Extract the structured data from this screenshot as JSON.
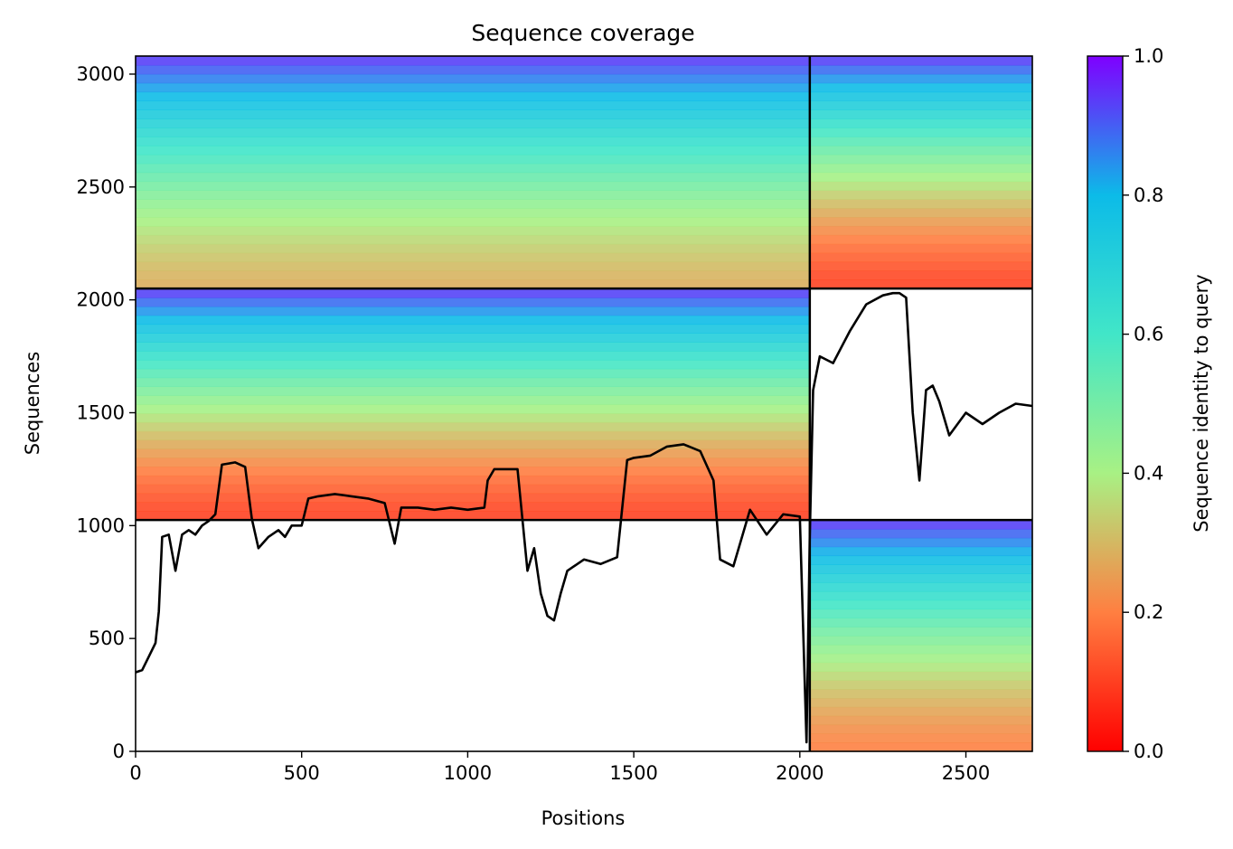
{
  "chart_data": {
    "type": "heatmap",
    "title": "Sequence coverage",
    "xlabel": "Positions",
    "ylabel": "Sequences",
    "xlim": [
      0,
      2700
    ],
    "ylim": [
      0,
      3080
    ],
    "xticks": [
      0,
      500,
      1000,
      1500,
      2000,
      2500
    ],
    "yticks": [
      0,
      500,
      1000,
      1500,
      2000,
      2500,
      3000
    ],
    "grid": false,
    "chain_boundaries_x": [
      2030
    ],
    "msa_group_boundaries_y": [
      1025,
      2050
    ],
    "colorbar": {
      "label": "Sequence identity to query",
      "colormap": "rainbow_r",
      "range": [
        0,
        1
      ],
      "ticks": [
        0.0,
        0.2,
        0.4,
        0.6,
        0.8,
        1.0
      ]
    },
    "blocks": [
      {
        "x0": 0,
        "x1": 2030,
        "y0": 2050,
        "y1": 3080,
        "identity_top": 0.95,
        "identity_bottom": 0.28
      },
      {
        "x0": 2030,
        "x1": 2700,
        "y0": 2050,
        "y1": 3080,
        "identity_top": 0.95,
        "identity_bottom": 0.1
      },
      {
        "x0": 0,
        "x1": 2030,
        "y0": 1025,
        "y1": 2050,
        "identity_top": 0.95,
        "identity_bottom": 0.1
      },
      {
        "x0": 2030,
        "x1": 2700,
        "y0": 0,
        "y1": 1025,
        "identity_top": 0.95,
        "identity_bottom": 0.2
      }
    ],
    "coverage_line": {
      "x": [
        0,
        20,
        40,
        60,
        70,
        80,
        100,
        120,
        140,
        160,
        180,
        200,
        220,
        240,
        260,
        300,
        330,
        350,
        370,
        400,
        430,
        450,
        470,
        500,
        520,
        550,
        600,
        650,
        700,
        750,
        780,
        800,
        850,
        900,
        950,
        1000,
        1050,
        1060,
        1080,
        1100,
        1150,
        1180,
        1200,
        1220,
        1240,
        1260,
        1280,
        1300,
        1350,
        1400,
        1450,
        1480,
        1500,
        1550,
        1600,
        1650,
        1700,
        1740,
        1760,
        1800,
        1850,
        1900,
        1950,
        2000,
        2020,
        2030,
        2040,
        2060,
        2100,
        2150,
        2200,
        2250,
        2280,
        2300,
        2320,
        2340,
        2360,
        2380,
        2400,
        2420,
        2450,
        2500,
        2550,
        2600,
        2650,
        2700
      ],
      "y": [
        350,
        360,
        420,
        480,
        620,
        950,
        960,
        800,
        960,
        980,
        960,
        1000,
        1020,
        1050,
        1270,
        1280,
        1260,
        1030,
        900,
        950,
        980,
        950,
        1000,
        1000,
        1120,
        1130,
        1140,
        1130,
        1120,
        1100,
        920,
        1080,
        1080,
        1070,
        1080,
        1070,
        1080,
        1200,
        1250,
        1250,
        1250,
        800,
        900,
        700,
        600,
        580,
        700,
        800,
        850,
        830,
        860,
        1290,
        1300,
        1310,
        1350,
        1360,
        1330,
        1200,
        850,
        820,
        1070,
        960,
        1050,
        1040,
        40,
        950,
        1600,
        1750,
        1720,
        1860,
        1980,
        2020,
        2030,
        2030,
        2010,
        1500,
        1200,
        1600,
        1620,
        1550,
        1400,
        1500,
        1450,
        1500,
        1540,
        1530
      ]
    }
  }
}
